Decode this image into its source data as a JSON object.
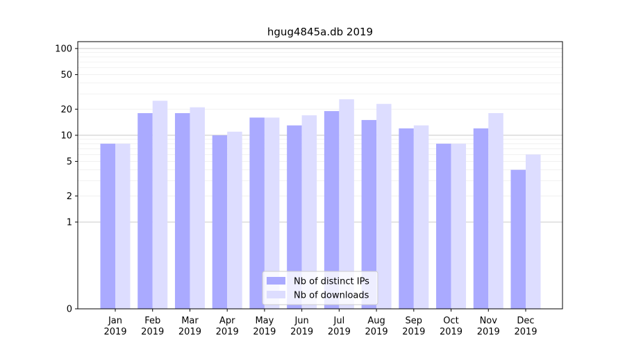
{
  "chart_data": {
    "type": "bar",
    "title": "hgug4845a.db 2019",
    "xlabel": "",
    "ylabel": "",
    "y_scale": "symlog",
    "ylim": [
      0,
      120
    ],
    "yticks": [
      0,
      1,
      2,
      5,
      10,
      20,
      50,
      100
    ],
    "ytick_labels": [
      "0",
      "1",
      "2",
      "5",
      "10",
      "20",
      "50",
      "100"
    ],
    "categories": [
      [
        "Jan",
        "2019"
      ],
      [
        "Feb",
        "2019"
      ],
      [
        "Mar",
        "2019"
      ],
      [
        "Apr",
        "2019"
      ],
      [
        "May",
        "2019"
      ],
      [
        "Jun",
        "2019"
      ],
      [
        "Jul",
        "2019"
      ],
      [
        "Aug",
        "2019"
      ],
      [
        "Sep",
        "2019"
      ],
      [
        "Oct",
        "2019"
      ],
      [
        "Nov",
        "2019"
      ],
      [
        "Dec",
        "2019"
      ]
    ],
    "series": [
      {
        "name": "Nb of distinct IPs",
        "color": "#aaaaff",
        "values": [
          8,
          18,
          18,
          10,
          16,
          13,
          19,
          15,
          12,
          8,
          12,
          4
        ]
      },
      {
        "name": "Nb of downloads",
        "color": "#ddddff",
        "values": [
          8,
          25,
          21,
          11,
          16,
          17,
          26,
          23,
          13,
          8,
          18,
          6
        ]
      }
    ],
    "grid": true,
    "legend_position": "lower-center"
  }
}
